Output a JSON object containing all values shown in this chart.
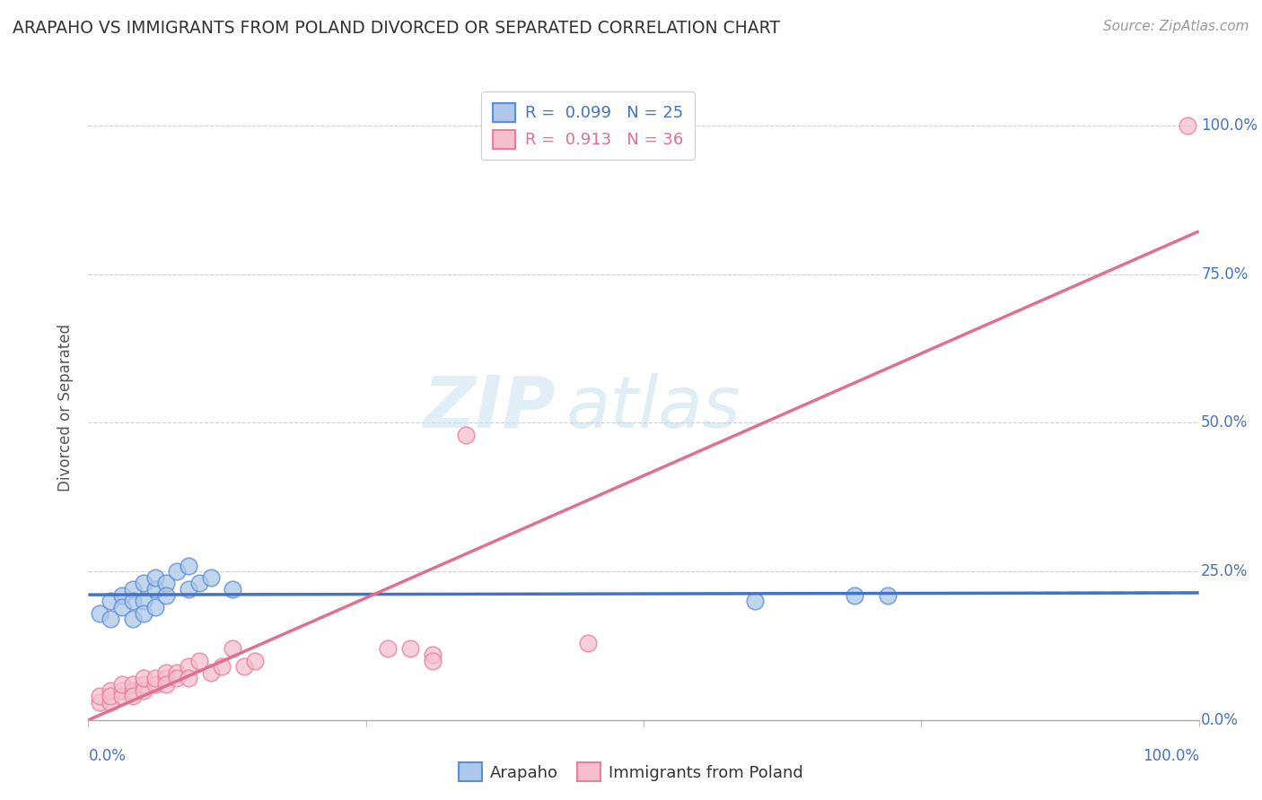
{
  "title": "ARAPAHO VS IMMIGRANTS FROM POLAND DIVORCED OR SEPARATED CORRELATION CHART",
  "source": "Source: ZipAtlas.com",
  "ylabel": "Divorced or Separated",
  "legend_arapaho_r": "0.099",
  "legend_arapaho_n": "25",
  "legend_poland_r": "0.913",
  "legend_poland_n": "36",
  "watermark_zip": "ZIP",
  "watermark_atlas": "atlas",
  "arapaho_color": "#adc8e8",
  "arapaho_edge_color": "#5b8dd9",
  "arapaho_line_color": "#4472c4",
  "poland_color": "#f5bfce",
  "poland_edge_color": "#e8809a",
  "poland_line_color": "#e07090",
  "tick_label_color": "#4472c4",
  "background_color": "#ffffff",
  "grid_color": "#d0d0d0",
  "title_color": "#333333",
  "source_color": "#999999",
  "ylabel_color": "#555555",
  "arapaho_points_x": [
    0.01,
    0.02,
    0.02,
    0.03,
    0.03,
    0.04,
    0.04,
    0.04,
    0.05,
    0.05,
    0.05,
    0.06,
    0.06,
    0.06,
    0.07,
    0.07,
    0.08,
    0.09,
    0.09,
    0.1,
    0.11,
    0.13,
    0.6,
    0.69,
    0.72
  ],
  "arapaho_points_y": [
    0.18,
    0.2,
    0.17,
    0.21,
    0.19,
    0.22,
    0.2,
    0.17,
    0.23,
    0.2,
    0.18,
    0.22,
    0.24,
    0.19,
    0.23,
    0.21,
    0.25,
    0.22,
    0.26,
    0.23,
    0.24,
    0.22,
    0.2,
    0.21,
    0.21
  ],
  "poland_points_x": [
    0.01,
    0.01,
    0.02,
    0.02,
    0.02,
    0.03,
    0.03,
    0.03,
    0.04,
    0.04,
    0.04,
    0.05,
    0.05,
    0.05,
    0.06,
    0.06,
    0.07,
    0.07,
    0.07,
    0.08,
    0.08,
    0.09,
    0.09,
    0.1,
    0.11,
    0.12,
    0.13,
    0.14,
    0.15,
    0.27,
    0.29,
    0.31,
    0.31,
    0.34,
    0.45,
    0.99
  ],
  "poland_points_y": [
    0.03,
    0.04,
    0.03,
    0.05,
    0.04,
    0.05,
    0.04,
    0.06,
    0.05,
    0.06,
    0.04,
    0.06,
    0.05,
    0.07,
    0.06,
    0.07,
    0.07,
    0.08,
    0.06,
    0.08,
    0.07,
    0.09,
    0.07,
    0.1,
    0.08,
    0.09,
    0.12,
    0.09,
    0.1,
    0.12,
    0.12,
    0.11,
    0.1,
    0.48,
    0.13,
    1.0
  ],
  "xmin": 0.0,
  "xmax": 1.0,
  "ymin": 0.0,
  "ymax": 1.05,
  "yticks": [
    0.0,
    0.25,
    0.5,
    0.75,
    1.0
  ],
  "ytick_labels": [
    "0.0%",
    "25.0%",
    "50.0%",
    "75.0%",
    "100.0%"
  ],
  "xtick_labels_bottom": [
    "0.0%",
    "100.0%"
  ]
}
